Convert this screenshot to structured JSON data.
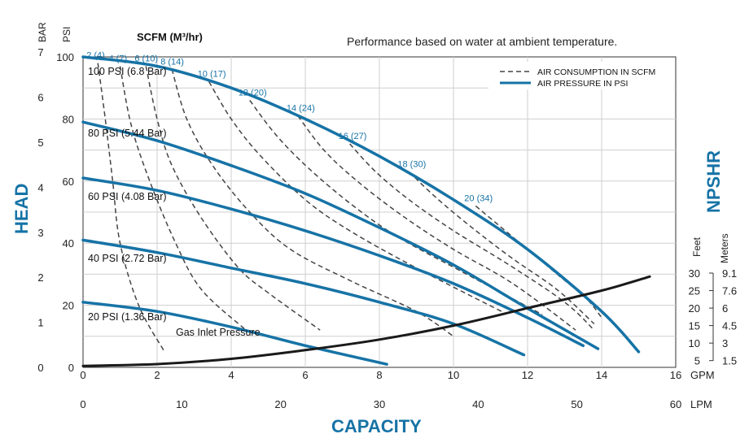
{
  "chart_data": {
    "type": "line",
    "title": "Performance based on water at ambient temperature.",
    "xlabel": "CAPACITY",
    "ylabel": "HEAD",
    "y2label": "NPSHR",
    "xlim_gpm": [
      0,
      16
    ],
    "xlim_lpm": [
      0,
      60
    ],
    "ylim_psi": [
      0,
      100
    ],
    "x_gpm_ticks": [
      "0",
      "2",
      "4",
      "6",
      "8",
      "10",
      "12",
      "14",
      "16"
    ],
    "x_gpm_unit": "GPM",
    "x_lpm_ticks": [
      "0",
      "10",
      "20",
      "30",
      "40",
      "50",
      "60"
    ],
    "x_lpm_unit": "LPM",
    "y_psi_ticks": [
      "0",
      "20",
      "40",
      "60",
      "80",
      "100"
    ],
    "y_psi_unit": "PSI",
    "y_bar_ticks": [
      "0",
      "1",
      "2",
      "3",
      "4",
      "5",
      "6",
      "7"
    ],
    "y_bar_unit": "BAR",
    "npshr_feet_ticks": [
      "5",
      "10",
      "15",
      "20",
      "25",
      "30"
    ],
    "npshr_feet_unit": "Feet",
    "npshr_meter_ticks": [
      "1.5",
      "3",
      "4.5",
      "6",
      "7.6",
      "9.1"
    ],
    "npshr_meter_unit": "Meters",
    "air_header": "SCFM (M³/hr)",
    "legend": [
      "AIR CONSUMPTION IN SCFM",
      "AIR PRESSURE IN PSI"
    ],
    "grid": true,
    "legend_position": "top-right",
    "colors": {
      "pressure": "#1673a6",
      "air": "#444444",
      "npshr": "#1a1a1a",
      "accent": "#1673a6"
    },
    "pressure_series": [
      {
        "name": "100 PSI (6.8 Bar)",
        "x": [
          0,
          2,
          4,
          6,
          8,
          10,
          12,
          14,
          15
        ],
        "y": [
          100,
          97,
          90,
          80,
          68,
          54,
          38,
          18,
          5
        ]
      },
      {
        "name": "80 PSI (5.44 Bar)",
        "x": [
          0,
          2,
          4,
          6,
          8,
          10,
          12,
          13.9
        ],
        "y": [
          79,
          73,
          65,
          56,
          45,
          33,
          19,
          6
        ]
      },
      {
        "name": "60 PSI (4.08 Bar)",
        "x": [
          0,
          2,
          4,
          6,
          8,
          10,
          12,
          13.5
        ],
        "y": [
          61,
          57,
          51,
          44,
          36,
          27,
          16,
          7
        ]
      },
      {
        "name": "40 PSI (2.72 Bar)",
        "x": [
          0,
          2,
          4,
          6,
          8,
          10,
          11.9
        ],
        "y": [
          41,
          37,
          32,
          27,
          21,
          14,
          4
        ]
      },
      {
        "name": "20 PSI (1.36 Bar)",
        "x": [
          0,
          2,
          4,
          6,
          8.2
        ],
        "y": [
          21,
          18,
          13,
          7,
          1
        ]
      }
    ],
    "air_series": [
      {
        "name": "2 (4)",
        "x": [
          0.4,
          0.6,
          0.8,
          1.0,
          1.5,
          2.2
        ],
        "y": [
          98,
          80,
          60,
          40,
          20,
          5
        ]
      },
      {
        "name": "4 (7)",
        "x": [
          1.0,
          1.3,
          1.8,
          2.5,
          3.2,
          4.4
        ],
        "y": [
          97,
          78,
          60,
          40,
          25,
          12
        ]
      },
      {
        "name": "6 (10)",
        "x": [
          1.7,
          2.0,
          2.4,
          3.2,
          4.2,
          5.0,
          6.4
        ],
        "y": [
          97,
          80,
          65,
          48,
          32,
          24,
          12
        ]
      },
      {
        "name": "8 (14)",
        "x": [
          2.4,
          2.8,
          3.5,
          4.5,
          5.6,
          7.2,
          9.0,
          10.0
        ],
        "y": [
          96,
          80,
          65,
          50,
          38,
          28,
          18,
          10
        ]
      },
      {
        "name": "10 (17)",
        "x": [
          3.4,
          4.0,
          4.8,
          6.0,
          7.2,
          9.0,
          11.3
        ],
        "y": [
          92,
          80,
          68,
          54,
          44,
          32,
          18
        ]
      },
      {
        "name": "12 (20)",
        "x": [
          4.5,
          5.2,
          6.1,
          7.3,
          8.5,
          10.2,
          12.4
        ],
        "y": [
          86,
          75,
          64,
          52,
          42,
          31,
          17
        ]
      },
      {
        "name": "14 (24)",
        "x": [
          5.8,
          6.5,
          7.4,
          8.6,
          10.0,
          11.6,
          13.3
        ],
        "y": [
          81,
          70,
          60,
          49,
          38,
          27,
          12
        ]
      },
      {
        "name": "16 (27)",
        "x": [
          7.2,
          7.9,
          8.8,
          10.0,
          11.5,
          13.0,
          13.8
        ],
        "y": [
          72,
          63,
          54,
          44,
          33,
          21,
          12
        ]
      },
      {
        "name": "18 (30)",
        "x": [
          8.8,
          9.5,
          10.5,
          11.6,
          12.8,
          13.8
        ],
        "y": [
          63,
          55,
          45,
          35,
          25,
          14
        ]
      },
      {
        "name": "20 (34)",
        "x": [
          10.6,
          11.2,
          12.0,
          12.8,
          13.6,
          14.0
        ],
        "y": [
          52,
          46,
          38,
          30,
          22,
          16
        ]
      }
    ],
    "npshr_series": {
      "name": "Gas Inlet Pressure",
      "x": [
        0,
        2,
        4,
        6,
        8,
        10,
        12,
        14,
        15.3
      ],
      "y_feet": [
        3.5,
        4,
        5.5,
        8,
        11,
        15,
        20,
        25,
        29
      ]
    }
  }
}
